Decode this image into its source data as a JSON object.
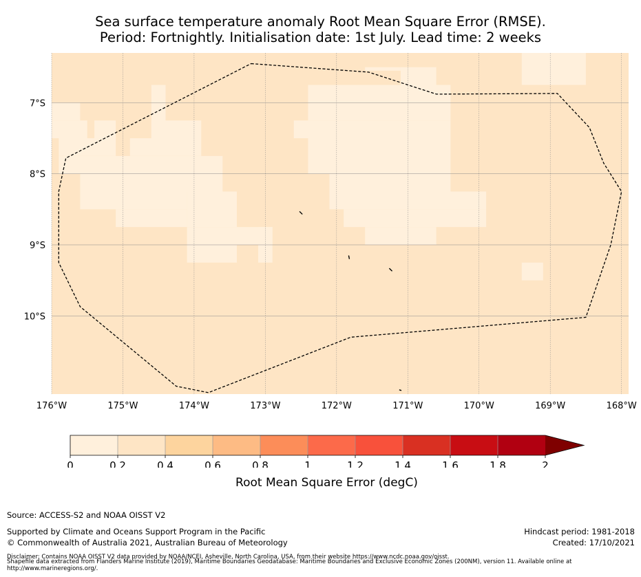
{
  "title": {
    "line1": "Sea surface temperature anomaly Root Mean Square Error (RMSE).",
    "line2": "Period: Fortnightly. Initialisation date: 1st July. Lead time: 2 weeks"
  },
  "map": {
    "lon_range": [
      -176,
      -167.9
    ],
    "lat_range": [
      -11.1,
      -6.3
    ],
    "lon_ticks": [
      {
        "value": -176,
        "label": "176°W"
      },
      {
        "value": -175,
        "label": "175°W"
      },
      {
        "value": -174,
        "label": "174°W"
      },
      {
        "value": -173,
        "label": "173°W"
      },
      {
        "value": -172,
        "label": "172°W"
      },
      {
        "value": -171,
        "label": "171°W"
      },
      {
        "value": -170,
        "label": "170°W"
      },
      {
        "value": -169,
        "label": "169°W"
      },
      {
        "value": -168,
        "label": "168°W"
      }
    ],
    "lat_ticks": [
      {
        "value": -7,
        "label": "7°S"
      },
      {
        "value": -8,
        "label": "8°S"
      },
      {
        "value": -9,
        "label": "9°S"
      },
      {
        "value": -10,
        "label": "10°S"
      }
    ],
    "grid": true,
    "background_rmse_class": "0.2-0.4",
    "low_rmse_cells": [
      [
        -173.1,
        -6.25,
        -172.9,
        -6.3
      ],
      [
        -171.6,
        -6.5,
        -171.1,
        -6.55
      ],
      [
        -169.4,
        -6.3,
        -168.5,
        -6.75
      ],
      [
        -171.1,
        -6.5,
        -170.6,
        -6.75
      ],
      [
        -172.4,
        -6.75,
        -170.4,
        -7.25
      ],
      [
        -176,
        -7,
        -175.6,
        -7.25
      ],
      [
        -174.6,
        -6.75,
        -174.4,
        -7.5
      ],
      [
        -172.6,
        -7.25,
        -170.4,
        -7.5
      ],
      [
        -176,
        -7.25,
        -175.5,
        -7.5
      ],
      [
        -174.6,
        -7.25,
        -173.9,
        -7.5
      ],
      [
        -172.4,
        -7.5,
        -170.4,
        -8
      ],
      [
        -175.9,
        -7.5,
        -175.1,
        -7.75
      ],
      [
        -175.4,
        -7.25,
        -175.1,
        -7.5
      ],
      [
        -174.9,
        -7.5,
        -173.9,
        -7.75
      ],
      [
        -175.9,
        -7.75,
        -173.6,
        -8
      ],
      [
        -175.6,
        -8,
        -173.6,
        -8.25
      ],
      [
        -172.1,
        -8,
        -170.4,
        -8.25
      ],
      [
        -175.6,
        -8.25,
        -174.1,
        -8.5
      ],
      [
        -172.1,
        -8.25,
        -169.9,
        -8.5
      ],
      [
        -175.1,
        -8.5,
        -174.1,
        -8.75
      ],
      [
        -174.1,
        -8.25,
        -173.4,
        -8.75
      ],
      [
        -171.9,
        -8.5,
        -169.9,
        -8.75
      ],
      [
        -173.1,
        -8.75,
        -172.9,
        -9
      ],
      [
        -171.6,
        -8.75,
        -170.6,
        -9
      ],
      [
        -173.1,
        -8.75,
        -172.9,
        -9.25
      ],
      [
        -169.4,
        -9.25,
        -169.1,
        -9.5
      ]
    ],
    "extra_low_cells": [
      [
        -174.1,
        -8.75,
        -173.1,
        -9
      ],
      [
        -174.1,
        -9,
        -173.4,
        -9.25
      ]
    ],
    "eez_boundary": [
      [
        -173.2,
        -6.45
      ],
      [
        -171.55,
        -6.57
      ],
      [
        -170.6,
        -6.88
      ],
      [
        -168.9,
        -6.87
      ],
      [
        -168.45,
        -7.35
      ],
      [
        -168.25,
        -7.85
      ],
      [
        -168.0,
        -8.25
      ],
      [
        -168.15,
        -9.0
      ],
      [
        -168.5,
        -10.02
      ],
      [
        -171.8,
        -10.3
      ],
      [
        -173.8,
        -11.08
      ],
      [
        -174.25,
        -10.99
      ],
      [
        -175.6,
        -9.87
      ],
      [
        -175.9,
        -9.25
      ],
      [
        -175.9,
        -8.25
      ],
      [
        -175.8,
        -7.78
      ],
      [
        -173.2,
        -6.45
      ]
    ],
    "islands": [
      [
        [
          -172.52,
          -8.53
        ],
        [
          -172.48,
          -8.57
        ]
      ],
      [
        [
          -171.83,
          -9.15
        ],
        [
          -171.82,
          -9.2
        ]
      ],
      [
        [
          -171.26,
          -9.33
        ],
        [
          -171.22,
          -9.37
        ]
      ],
      [
        [
          -171.12,
          -11.04
        ],
        [
          -171.09,
          -11.05
        ]
      ]
    ]
  },
  "colorbar": {
    "tick_labels": [
      "0",
      "0.2",
      "0.4",
      "0.6",
      "0.8",
      "1",
      "1.2",
      "1.4",
      "1.6",
      "1.8",
      "2"
    ],
    "colors": [
      "#fff0dc",
      "#fee5c5",
      "#fdd49e",
      "#fdbb84",
      "#fc8d59",
      "#fc6a4a",
      "#f8513b",
      "#d93022",
      "#c80d13",
      "#b10011"
    ],
    "extend_color": "#7f0000",
    "label": "Root Mean Square Error (degC)"
  },
  "colors": {
    "base_fill": "#fee5c5",
    "low_fill": "#fff0dc"
  },
  "footer": {
    "source": "Source: ACCESS-S2 and NOAA OISST V2",
    "supported": "Supported by Climate and Oceans Support Program in the Pacific",
    "copyright": "© Commonwealth of Australia 2021, Australian Bureau of Meteorology",
    "hindcast": "Hindcast period: 1981-2018",
    "created": "Created: 17/10/2021",
    "disclaimer": "Disclaimer: Contains NOAA OISST V2 data provided by NOAA/NCEI, Asheville, North Carolina, USA, from their website https://www.ncdc.noaa.gov/oisst.",
    "shapefile": "Shapefile data extracted from Flanders Marine Institute (2019), Maritime Boundaries Geodatabase: Maritime Boundaries and Exclusive Economic Zones (200NM), version 11. Available online at http://www.marineregions.org/."
  }
}
